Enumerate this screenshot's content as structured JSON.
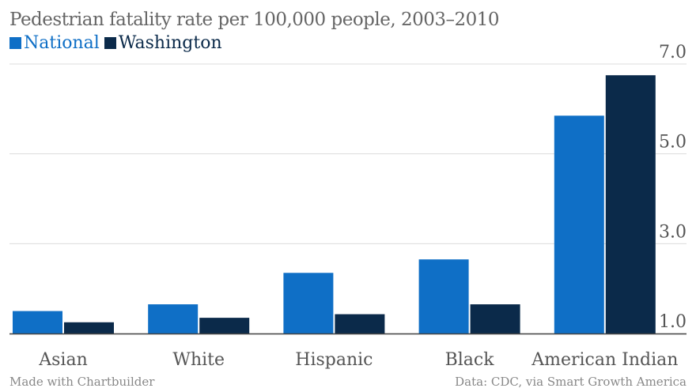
{
  "title": "Pedestrian fatality rate per 100,000 people, 2003–2010",
  "legend": [
    {
      "name": "National",
      "color": "#0f6fc6"
    },
    {
      "name": "Washington",
      "color": "#0b2a4a"
    }
  ],
  "footer": {
    "left": "Made with Chartbuilder",
    "right": "Data: CDC, via Smart Growth America"
  },
  "chart_data": {
    "type": "bar",
    "title": "Pedestrian fatality rate per 100,000 people, 2003–2010",
    "categories": [
      "Asian",
      "White",
      "Hispanic",
      "Black",
      "American Indian"
    ],
    "series": [
      {
        "name": "National",
        "color": "#0f6fc6",
        "values": [
          1.5,
          1.65,
          2.35,
          2.65,
          5.85
        ]
      },
      {
        "name": "Washington",
        "color": "#0b2a4a",
        "values": [
          1.25,
          1.35,
          1.43,
          1.65,
          6.75
        ]
      }
    ],
    "ylim": [
      1.0,
      7.0
    ],
    "yticks": [
      1.0,
      3.0,
      5.0,
      7.0
    ],
    "ytick_labels": [
      "1.0",
      "3.0",
      "5.0",
      "7.0"
    ],
    "xlabel": "",
    "ylabel": "",
    "grid": true,
    "axis_position": "right",
    "legend_position": "top-left"
  }
}
